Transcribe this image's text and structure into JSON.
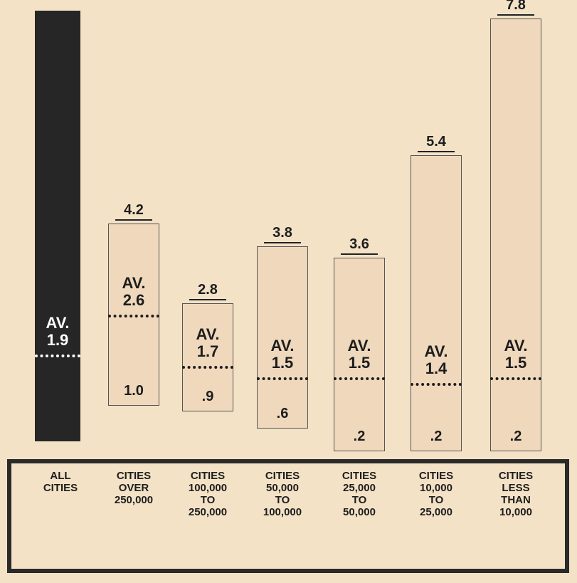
{
  "chart_data": {
    "type": "range",
    "categories": [
      "ALL\nCITIES",
      "CITIES\nOVER\n250,000",
      "CITIES\n100,000\nTO\n250,000",
      "CITIES\n50,000\nTO\n100,000",
      "CITIES\n25,000\nTO\n50,000",
      "CITIES\n10,000\nTO\n25,000",
      "CITIES\nLESS\nTHAN\n10,000"
    ],
    "series": [
      {
        "values": [
          null,
          4.2,
          2.8,
          3.8,
          3.6,
          5.4,
          7.8
        ],
        "color": "#efd8bb"
      },
      {
        "values": [
          null,
          1.0,
          0.9,
          0.6,
          0.2,
          0.2,
          0.2
        ],
        "value_labels": [
          null,
          "1.0",
          ".9",
          ".6",
          ".2",
          ".2",
          ".2"
        ]
      },
      {
        "values": [
          1.9,
          2.6,
          1.7,
          1.5,
          1.5,
          1.4,
          1.5
        ],
        "value_labels": [
          "AV.\n1.9",
          "AV.\n2.6",
          "AV.\n1.7",
          "AV.\n1.5",
          "AV.\n1.5",
          "AV.\n1.4",
          "AV.\n1.5"
        ],
        "color": "#1e1e1e"
      }
    ],
    "highlight_color": "#262626"
  }
}
